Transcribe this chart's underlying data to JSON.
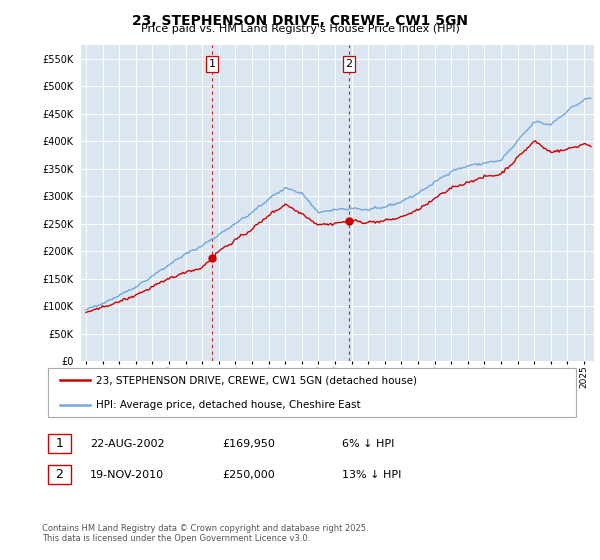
{
  "title": "23, STEPHENSON DRIVE, CREWE, CW1 5GN",
  "subtitle": "Price paid vs. HM Land Registry's House Price Index (HPI)",
  "legend_line1": "23, STEPHENSON DRIVE, CREWE, CW1 5GN (detached house)",
  "legend_line2": "HPI: Average price, detached house, Cheshire East",
  "sale1_date": "22-AUG-2002",
  "sale1_price": "£169,950",
  "sale1_hpi": "6% ↓ HPI",
  "sale2_date": "19-NOV-2010",
  "sale2_price": "£250,000",
  "sale2_hpi": "13% ↓ HPI",
  "footer": "Contains HM Land Registry data © Crown copyright and database right 2025.\nThis data is licensed under the Open Government Licence v3.0.",
  "hpi_color": "#6fa8dc",
  "price_color": "#cc0000",
  "dashed_line_color": "#cc0000",
  "plot_bg_color": "#dce6f1",
  "grid_color": "#ffffff",
  "ylim": [
    0,
    575000
  ],
  "yticks": [
    0,
    50000,
    100000,
    150000,
    200000,
    250000,
    300000,
    350000,
    400000,
    450000,
    500000,
    550000
  ]
}
